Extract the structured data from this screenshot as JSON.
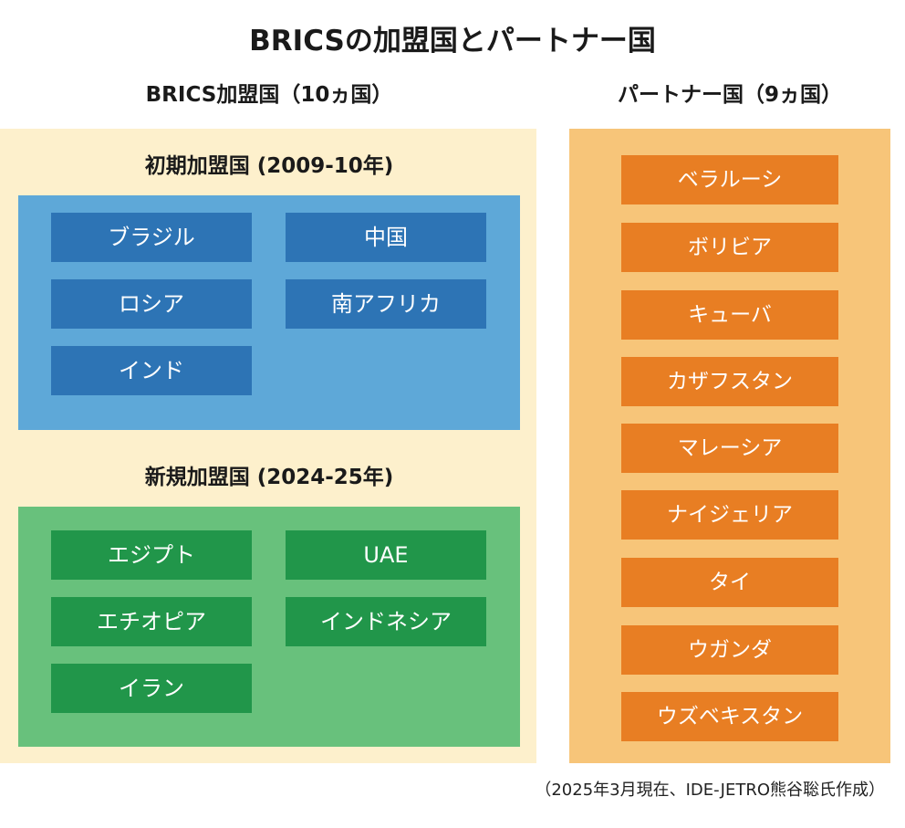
{
  "title": "BRICSの加盟国とパートナー国",
  "members": {
    "heading": "BRICS加盟国（10ヵ国）",
    "initial": {
      "heading": "初期加盟国 (2009-10年)",
      "countries": [
        "ブラジル",
        "中国",
        "ロシア",
        "南アフリカ",
        "インド"
      ]
    },
    "new": {
      "heading": "新規加盟国 (2024-25年)",
      "countries": [
        "エジプト",
        "UAE",
        "エチオピア",
        "インドネシア",
        "イラン"
      ]
    }
  },
  "partners": {
    "heading": "パートナー国（9ヵ国）",
    "countries": [
      "ベラルーシ",
      "ボリビア",
      "キューバ",
      "カザフスタン",
      "マレーシア",
      "ナイジェリア",
      "タイ",
      "ウガンダ",
      "ウズベキスタン"
    ]
  },
  "footnote": "（2025年3月現在、IDE-JETRO熊谷聡氏作成）",
  "colors": {
    "members_bg": "#fdf0cc",
    "initial_bg": "#5ea8d8",
    "initial_cell": "#2d74b5",
    "new_bg": "#68c17c",
    "new_cell": "#21964a",
    "partners_bg": "#f7c579",
    "partner_cell": "#e87e23"
  }
}
